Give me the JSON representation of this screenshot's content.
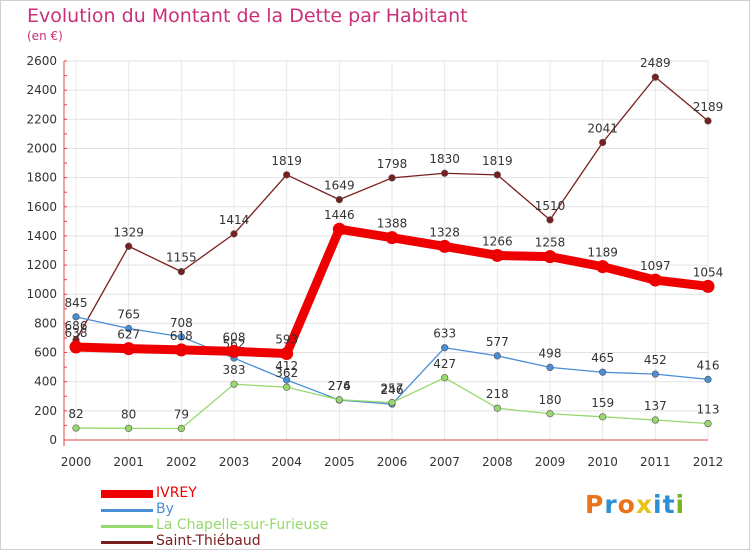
{
  "header": {
    "title": "Evolution du Montant de la Dette par Habitant",
    "subtitle": "(en €)"
  },
  "logo": {
    "letters": [
      "P",
      "r",
      "o",
      "x",
      "i",
      "t",
      "i"
    ],
    "colors": [
      "#e8731a",
      "#2d8fd6",
      "#e8731a",
      "#e8c21a",
      "#2d8fd6",
      "#2d8fd6",
      "#7ab51d"
    ]
  },
  "chart_data": {
    "type": "line",
    "x": [
      "2000",
      "2001",
      "2002",
      "2003",
      "2004",
      "2005",
      "2006",
      "2007",
      "2008",
      "2009",
      "2010",
      "2011",
      "2012"
    ],
    "ylim": [
      0,
      2600
    ],
    "yticks": [
      "0",
      "200",
      "400",
      "600",
      "800",
      "1000",
      "1200",
      "1400",
      "1600",
      "1800",
      "2000",
      "2200",
      "2400",
      "2600"
    ],
    "grid": true,
    "legend_position": "bottom-left",
    "series": [
      {
        "name": "Saint-Thiébaud",
        "color": "#7a1f1f",
        "values": [
          686,
          1329,
          1155,
          1414,
          1819,
          1649,
          1798,
          1830,
          1819,
          1510,
          2041,
          2489,
          2189
        ],
        "labels": [
          "686",
          "1329",
          "1155",
          "1414",
          "1819",
          "1649",
          "1798",
          "1830",
          "1819",
          "1510",
          "2041",
          "2489",
          "2189"
        ]
      },
      {
        "name": "By",
        "color": "#4a8ed6",
        "values": [
          845,
          765,
          708,
          562,
          412,
          274,
          246,
          633,
          577,
          498,
          465,
          452,
          416
        ],
        "labels": [
          "845",
          "765",
          "708",
          "562",
          "412",
          "274",
          "246",
          "633",
          "577",
          "498",
          "465",
          "452",
          "416"
        ]
      },
      {
        "name": "La Chapelle-sur-Furieuse",
        "color": "#98d96e",
        "values": [
          82,
          80,
          79,
          383,
          362,
          276,
          257,
          427,
          218,
          180,
          159,
          137,
          113
        ],
        "labels": [
          "82",
          "80",
          "79",
          "383",
          "362",
          "276",
          "257",
          "427",
          "218",
          "180",
          "159",
          "137",
          "113"
        ]
      },
      {
        "name": "IVREY",
        "color": "#ee0000",
        "values": [
          638,
          627,
          618,
          608,
          593,
          1446,
          1388,
          1328,
          1266,
          1258,
          1189,
          1097,
          1054
        ],
        "labels": [
          "638",
          "627",
          "618",
          "608",
          "593",
          "1446",
          "1388",
          "1328",
          "1266",
          "1258",
          "1189",
          "1097",
          "1054"
        ]
      }
    ],
    "legend": [
      {
        "name": "IVREY",
        "color": "#ee0000"
      },
      {
        "name": "By",
        "color": "#4a8ed6"
      },
      {
        "name": "La Chapelle-sur-Furieuse",
        "color": "#98d96e"
      },
      {
        "name": "Saint-Thiébaud",
        "color": "#7a1f1f"
      }
    ]
  }
}
